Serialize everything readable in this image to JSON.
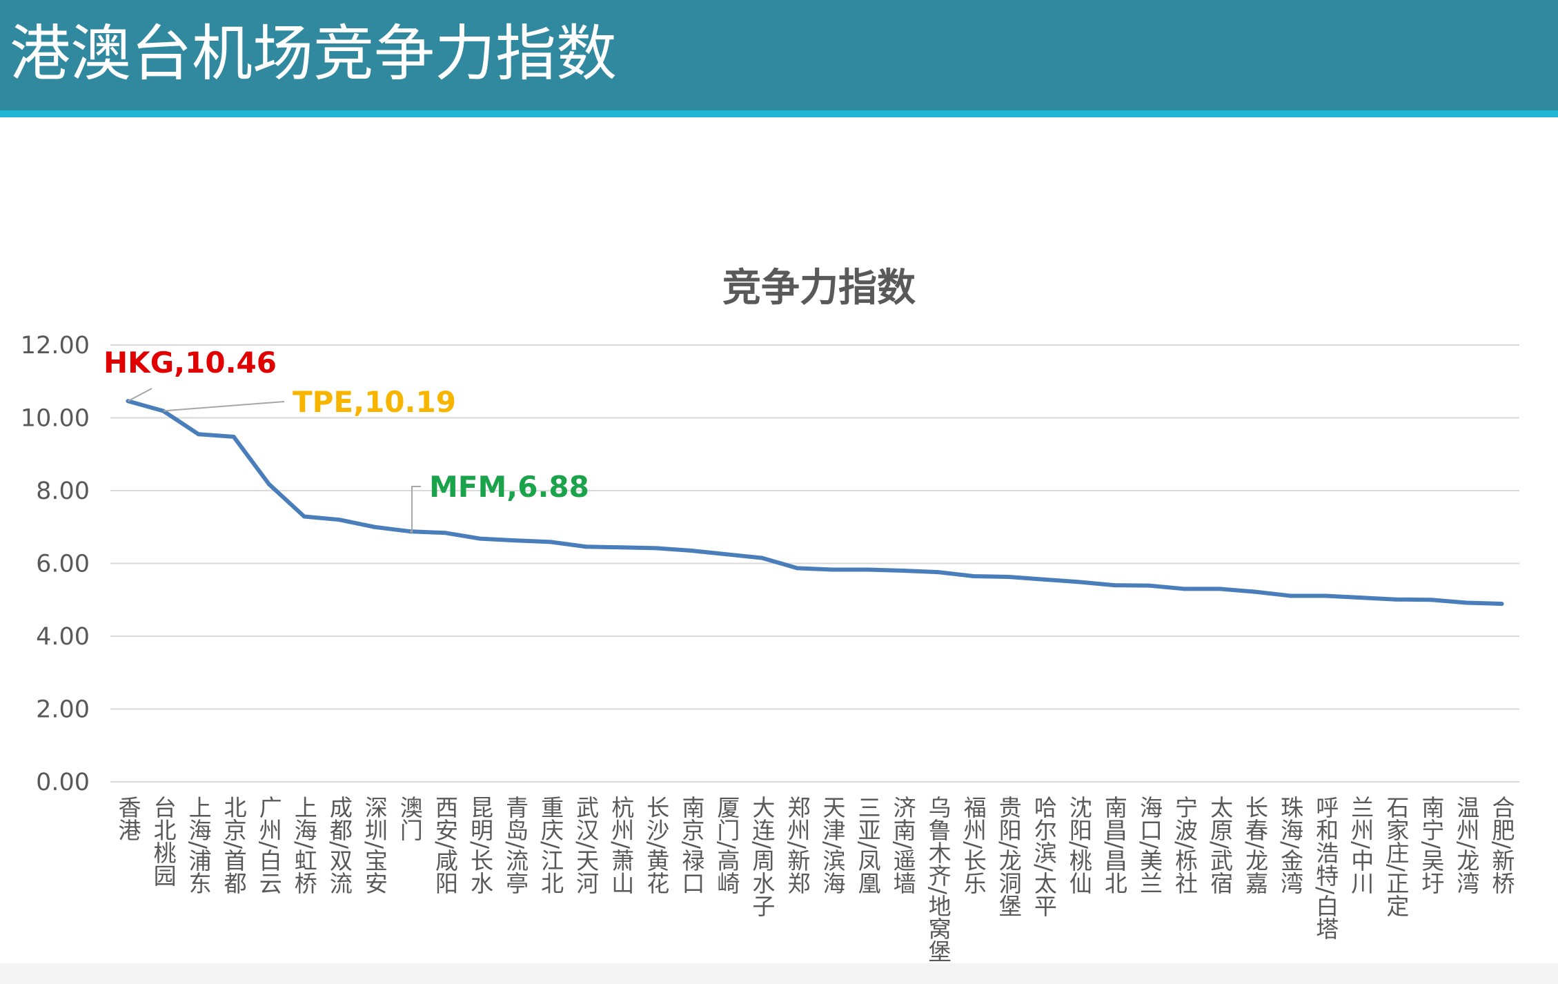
{
  "slide": {
    "title": "港澳台机场竞争力指数"
  },
  "colors": {
    "header": "#31899f",
    "stripe": "#20b6d6",
    "line": "#4a7ebb",
    "hkg": "#e00000",
    "tpe": "#f7b500",
    "mfm": "#1aa34a",
    "grid": "#d9d9d9",
    "text": "#595959"
  },
  "chart_data": {
    "type": "line",
    "title": "竞争力指数",
    "xlabel": "",
    "ylabel": "",
    "ylim": [
      0,
      12
    ],
    "yticks": [
      "0.00",
      "2.00",
      "4.00",
      "6.00",
      "8.00",
      "10.00",
      "12.00"
    ],
    "grid": true,
    "legend": "none",
    "categories": [
      "香港",
      "台北桃园",
      "上海/浦东",
      "北京/首都",
      "广州/白云",
      "上海/虹桥",
      "成都/双流",
      "深圳/宝安",
      "澳门",
      "西安/咸阳",
      "昆明/长水",
      "青岛/流亭",
      "重庆/江北",
      "武汉/天河",
      "杭州/萧山",
      "长沙/黄花",
      "南京/禄口",
      "厦门/高崎",
      "大连/周水子",
      "郑州/新郑",
      "天津/滨海",
      "三亚/凤凰",
      "济南/遥墙",
      "乌鲁木齐/地窝堡",
      "福州/长乐",
      "贵阳/龙洞堡",
      "哈尔滨/太平",
      "沈阳/桃仙",
      "南昌/昌北",
      "海口/美兰",
      "宁波/栎社",
      "太原/武宿",
      "长春/龙嘉",
      "珠海/金湾",
      "呼和浩特/白塔",
      "兰州/中川",
      "石家庄/正定",
      "南宁/吴圩",
      "温州/龙湾",
      "合肥/新桥"
    ],
    "series": [
      {
        "values": [
          10.46,
          10.19,
          9.55,
          9.48,
          8.18,
          7.29,
          7.2,
          7.0,
          6.88,
          6.84,
          6.68,
          6.63,
          6.59,
          6.46,
          6.44,
          6.42,
          6.35,
          6.25,
          6.15,
          5.87,
          5.83,
          5.83,
          5.8,
          5.76,
          5.65,
          5.63,
          5.56,
          5.49,
          5.4,
          5.39,
          5.3,
          5.3,
          5.22,
          5.11,
          5.11,
          5.06,
          5.01,
          5.0,
          4.92,
          4.89
        ]
      }
    ],
    "annotations": [
      {
        "label": "HKG,10.46",
        "index": 0,
        "color_key": "hkg"
      },
      {
        "label": "TPE,10.19",
        "index": 1,
        "color_key": "tpe"
      },
      {
        "label": "MFM,6.88",
        "index": 8,
        "color_key": "mfm"
      }
    ]
  }
}
